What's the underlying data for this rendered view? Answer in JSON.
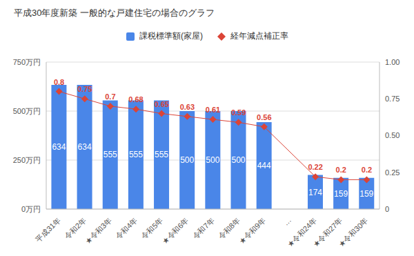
{
  "chart_data": {
    "type": "bar",
    "title": "平成30年度新築 一般的な戸建住宅の場合のグラフ",
    "categories": [
      "平成31年",
      "令和2年",
      "★令和3年",
      "令和4年",
      "令和5年",
      "★令和6年",
      "令和7年",
      "令和8年",
      "★令和9年",
      "…",
      "★令和24年",
      "★令和27年",
      "★令和30年"
    ],
    "series": [
      {
        "name": "課税標準額(家屋)",
        "type": "bar",
        "color": "#4a86e8",
        "values": [
          634,
          634,
          555,
          555,
          555,
          500,
          500,
          500,
          444,
          null,
          174,
          159,
          159
        ]
      },
      {
        "name": "経年減点補正率",
        "type": "line",
        "axis": "y2",
        "color": "#db4437",
        "marker": "diamond",
        "line_style": "solid",
        "values": [
          0.8,
          0.75,
          0.7,
          0.68,
          0.65,
          0.63,
          0.61,
          0.59,
          0.56,
          null,
          0.22,
          0.2,
          0.2
        ]
      }
    ],
    "ylim": [
      0,
      750
    ],
    "yticks": [
      {
        "value": 0,
        "label": "0万円"
      },
      {
        "value": 250,
        "label": "250万円"
      },
      {
        "value": 500,
        "label": "500万円"
      },
      {
        "value": 750,
        "label": "750万円"
      }
    ],
    "y2lim": [
      0,
      1
    ],
    "y2ticks": [
      0,
      0.25,
      {
        "value": 0.5,
        "label": "0.50"
      },
      0.75,
      {
        "value": 1,
        "label": "1.00"
      }
    ],
    "grid": true,
    "data_labels": true,
    "legend": "top"
  }
}
